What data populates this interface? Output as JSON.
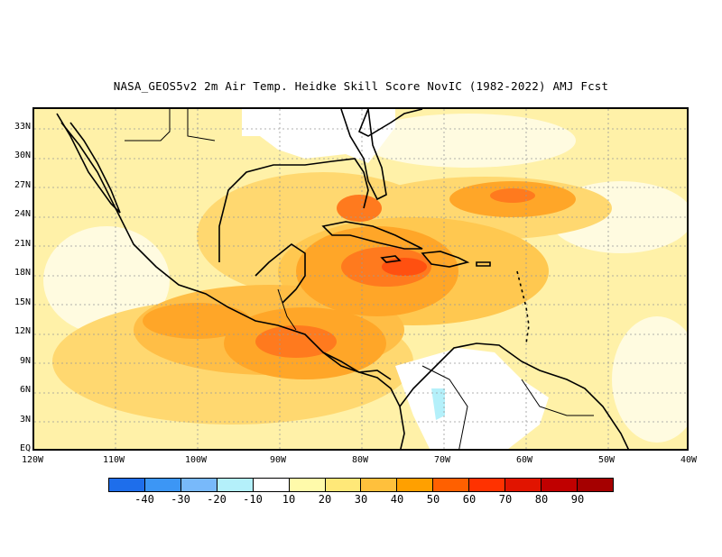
{
  "title": "NASA_GEOS5v2  2m Air Temp. Heidke Skill Score NovIC (1982-2022) AMJ Fcst",
  "map": {
    "lat_labels": [
      "33N",
      "30N",
      "27N",
      "24N",
      "21N",
      "18N",
      "15N",
      "12N",
      "9N",
      "6N",
      "3N",
      "EQ"
    ],
    "lon_labels": [
      "120W",
      "110W",
      "100W",
      "90W",
      "80W",
      "70W",
      "60W",
      "50W",
      "40W"
    ],
    "extent": {
      "lon_min": -120,
      "lon_max": -40,
      "lat_min": 0,
      "lat_max": 35
    },
    "gridlines": "dotted"
  },
  "colorbar": {
    "colors": [
      "#1e6eeb",
      "#3c96f5",
      "#78b9fa",
      "#b4f0fa",
      "#ffffff",
      "#fffaaa",
      "#ffe878",
      "#ffc03c",
      "#ffa000",
      "#ff6000",
      "#ff3200",
      "#e11400",
      "#c00000",
      "#a50000"
    ],
    "labels": [
      "-40",
      "-30",
      "-20",
      "-10",
      "10",
      "20",
      "30",
      "40",
      "50",
      "60",
      "70",
      "80",
      "90"
    ]
  }
}
